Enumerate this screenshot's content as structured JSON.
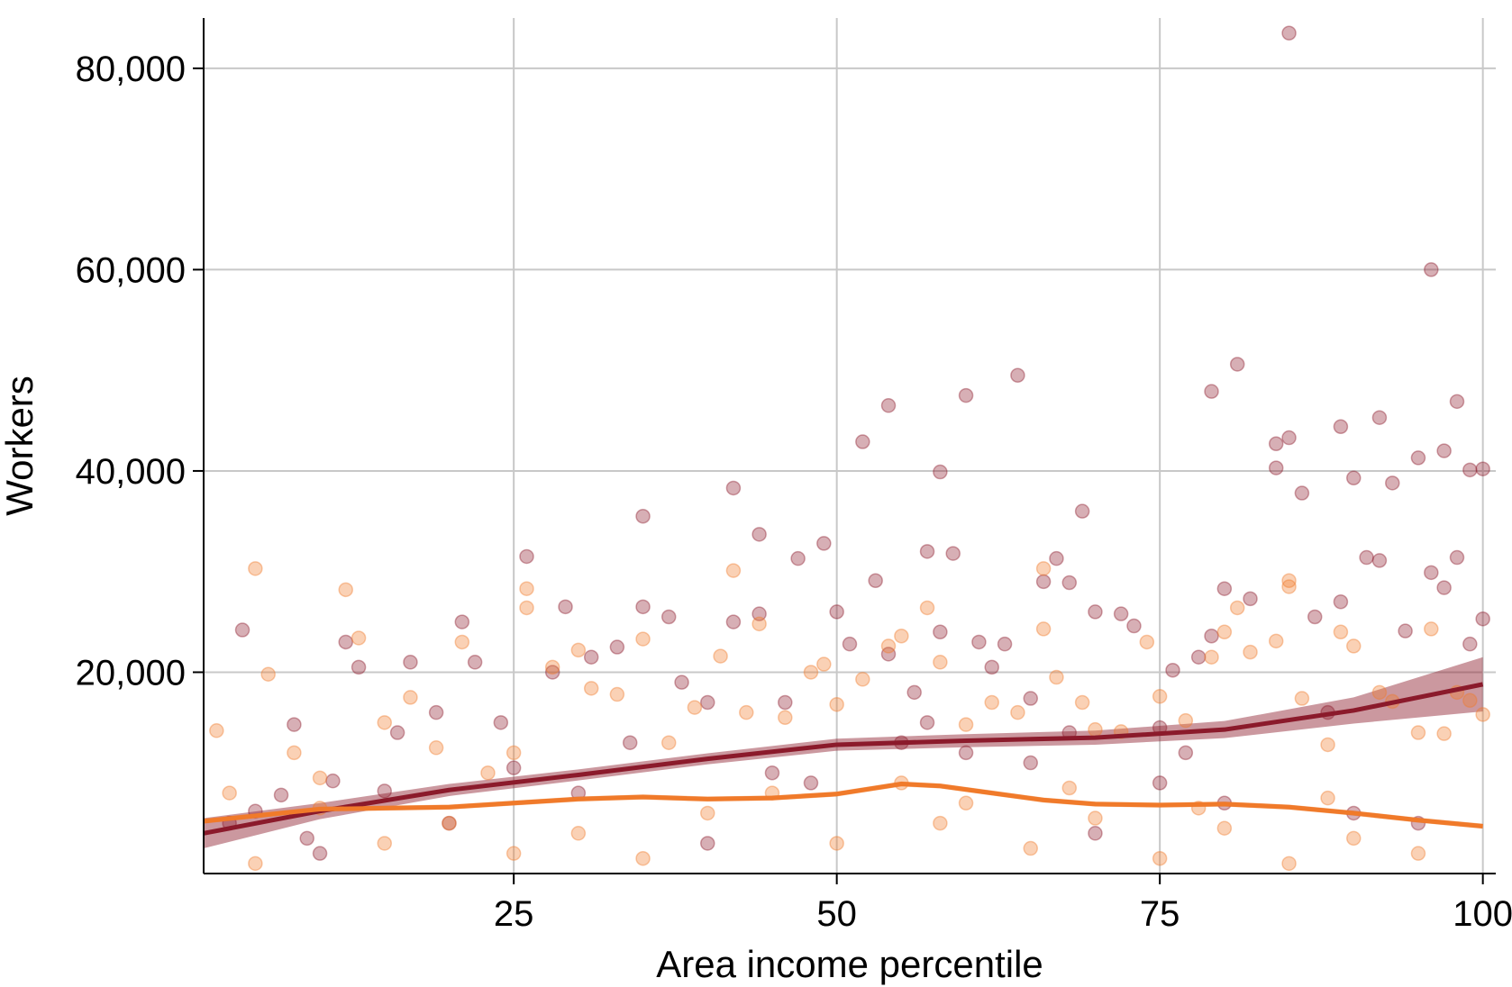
{
  "chart_data": {
    "type": "scatter",
    "title": "",
    "xlabel": "Area income percentile",
    "ylabel": "Workers",
    "xlim": [
      1,
      101
    ],
    "ylim": [
      0,
      85000
    ],
    "x_ticks": [
      25,
      50,
      75,
      100
    ],
    "x_tick_labels": [
      "25",
      "50",
      "75",
      "100"
    ],
    "y_ticks": [
      20000,
      40000,
      60000,
      80000
    ],
    "y_tick_labels": [
      "20,000",
      "40,000",
      "60,000",
      "80,000"
    ],
    "grid": true,
    "legend": "none",
    "series": [
      {
        "color": "#8b1a2b",
        "marker_alpha": 0.35,
        "points": [
          [
            3,
            5000
          ],
          [
            5,
            6200
          ],
          [
            7,
            7800
          ],
          [
            9,
            3500
          ],
          [
            11,
            9200
          ],
          [
            12,
            23000
          ],
          [
            13,
            20500
          ],
          [
            15,
            8200
          ],
          [
            17,
            21000
          ],
          [
            19,
            16000
          ],
          [
            21,
            25000
          ],
          [
            22,
            21000
          ],
          [
            24,
            15000
          ],
          [
            26,
            31500
          ],
          [
            28,
            20000
          ],
          [
            29,
            26500
          ],
          [
            31,
            21500
          ],
          [
            33,
            22500
          ],
          [
            35,
            35500
          ],
          [
            35,
            26500
          ],
          [
            37,
            25500
          ],
          [
            38,
            19000
          ],
          [
            40,
            17000
          ],
          [
            42,
            38300
          ],
          [
            42,
            25000
          ],
          [
            44,
            25800
          ],
          [
            44,
            33700
          ],
          [
            46,
            17000
          ],
          [
            47,
            31300
          ],
          [
            49,
            32800
          ],
          [
            50,
            26000
          ],
          [
            51,
            22800
          ],
          [
            52,
            42900
          ],
          [
            53,
            29100
          ],
          [
            54,
            46500
          ],
          [
            54,
            21800
          ],
          [
            56,
            18000
          ],
          [
            57,
            32000
          ],
          [
            58,
            39900
          ],
          [
            58,
            24000
          ],
          [
            59,
            31800
          ],
          [
            60,
            47500
          ],
          [
            61,
            23000
          ],
          [
            62,
            20500
          ],
          [
            63,
            22800
          ],
          [
            64,
            49500
          ],
          [
            65,
            17400
          ],
          [
            66,
            29000
          ],
          [
            67,
            31300
          ],
          [
            68,
            28900
          ],
          [
            69,
            36000
          ],
          [
            70,
            26000
          ],
          [
            72,
            25800
          ],
          [
            73,
            24600
          ],
          [
            75,
            14500
          ],
          [
            76,
            20200
          ],
          [
            78,
            21500
          ],
          [
            79,
            47900
          ],
          [
            79,
            23600
          ],
          [
            80,
            28300
          ],
          [
            81,
            50600
          ],
          [
            82,
            27300
          ],
          [
            84,
            42700
          ],
          [
            84,
            40300
          ],
          [
            85,
            43300
          ],
          [
            86,
            37800
          ],
          [
            87,
            25500
          ],
          [
            89,
            27000
          ],
          [
            89,
            44400
          ],
          [
            90,
            39300
          ],
          [
            91,
            31400
          ],
          [
            92,
            45300
          ],
          [
            92,
            31100
          ],
          [
            93,
            38800
          ],
          [
            94,
            24100
          ],
          [
            95,
            41300
          ],
          [
            96,
            60000
          ],
          [
            96,
            29900
          ],
          [
            97,
            42000
          ],
          [
            97,
            28400
          ],
          [
            98,
            46900
          ],
          [
            98,
            31400
          ],
          [
            99,
            40100
          ],
          [
            99,
            22800
          ],
          [
            100,
            40200
          ],
          [
            100,
            25300
          ],
          [
            85,
            83500
          ],
          [
            55,
            13000
          ],
          [
            65,
            11000
          ],
          [
            75,
            9000
          ],
          [
            30,
            8000
          ],
          [
            20,
            5000
          ],
          [
            45,
            10000
          ],
          [
            60,
            12000
          ],
          [
            80,
            7000
          ],
          [
            90,
            6000
          ],
          [
            10,
            2000
          ],
          [
            40,
            3000
          ],
          [
            70,
            4000
          ],
          [
            95,
            5000
          ],
          [
            4,
            24200
          ],
          [
            8,
            14800
          ],
          [
            16,
            14000
          ],
          [
            25,
            10500
          ],
          [
            34,
            13000
          ],
          [
            48,
            9000
          ],
          [
            57,
            15000
          ],
          [
            68,
            14000
          ],
          [
            77,
            12000
          ],
          [
            88,
            16000
          ]
        ],
        "smooth_line": [
          [
            1,
            4000
          ],
          [
            10,
            6200
          ],
          [
            20,
            8300
          ],
          [
            30,
            9800
          ],
          [
            40,
            11400
          ],
          [
            50,
            12800
          ],
          [
            60,
            13200
          ],
          [
            70,
            13500
          ],
          [
            80,
            14300
          ],
          [
            90,
            16200
          ],
          [
            100,
            18800
          ]
        ],
        "band_halfwidth": [
          [
            1,
            1500
          ],
          [
            10,
            800
          ],
          [
            20,
            600
          ],
          [
            30,
            550
          ],
          [
            40,
            550
          ],
          [
            50,
            600
          ],
          [
            60,
            650
          ],
          [
            70,
            700
          ],
          [
            80,
            850
          ],
          [
            90,
            1300
          ],
          [
            100,
            2700
          ]
        ]
      },
      {
        "color": "#f07a2a",
        "marker_alpha": 0.35,
        "points": [
          [
            2,
            14200
          ],
          [
            3,
            8000
          ],
          [
            5,
            30300
          ],
          [
            6,
            19800
          ],
          [
            8,
            12000
          ],
          [
            10,
            9500
          ],
          [
            12,
            28200
          ],
          [
            13,
            23400
          ],
          [
            15,
            15000
          ],
          [
            17,
            17500
          ],
          [
            19,
            12500
          ],
          [
            21,
            23000
          ],
          [
            23,
            10000
          ],
          [
            25,
            12000
          ],
          [
            26,
            28300
          ],
          [
            26,
            26400
          ],
          [
            28,
            20500
          ],
          [
            30,
            22200
          ],
          [
            31,
            18400
          ],
          [
            33,
            17800
          ],
          [
            35,
            23300
          ],
          [
            37,
            13000
          ],
          [
            39,
            16500
          ],
          [
            41,
            21600
          ],
          [
            42,
            30100
          ],
          [
            43,
            16000
          ],
          [
            44,
            24800
          ],
          [
            46,
            15500
          ],
          [
            48,
            20000
          ],
          [
            49,
            20800
          ],
          [
            50,
            16800
          ],
          [
            52,
            19300
          ],
          [
            54,
            22600
          ],
          [
            55,
            23600
          ],
          [
            57,
            26400
          ],
          [
            58,
            21000
          ],
          [
            60,
            14800
          ],
          [
            62,
            17000
          ],
          [
            64,
            16000
          ],
          [
            66,
            30300
          ],
          [
            66,
            24300
          ],
          [
            67,
            19500
          ],
          [
            69,
            17000
          ],
          [
            70,
            14300
          ],
          [
            72,
            14100
          ],
          [
            74,
            23000
          ],
          [
            75,
            17600
          ],
          [
            77,
            15200
          ],
          [
            79,
            21500
          ],
          [
            80,
            24000
          ],
          [
            81,
            26400
          ],
          [
            82,
            22000
          ],
          [
            84,
            23100
          ],
          [
            85,
            29100
          ],
          [
            85,
            28500
          ],
          [
            86,
            17400
          ],
          [
            88,
            12800
          ],
          [
            89,
            24000
          ],
          [
            90,
            22600
          ],
          [
            92,
            18000
          ],
          [
            93,
            17100
          ],
          [
            95,
            14000
          ],
          [
            96,
            24300
          ],
          [
            97,
            13900
          ],
          [
            98,
            18000
          ],
          [
            99,
            17200
          ],
          [
            100,
            15800
          ],
          [
            20,
            5000
          ],
          [
            30,
            4000
          ],
          [
            40,
            6000
          ],
          [
            50,
            3000
          ],
          [
            60,
            7000
          ],
          [
            70,
            5500
          ],
          [
            80,
            4500
          ],
          [
            90,
            3500
          ],
          [
            10,
            6500
          ],
          [
            45,
            8000
          ],
          [
            55,
            9000
          ],
          [
            65,
            2500
          ],
          [
            75,
            1500
          ],
          [
            85,
            1000
          ],
          [
            95,
            2000
          ],
          [
            15,
            3000
          ],
          [
            35,
            1500
          ],
          [
            25,
            2000
          ],
          [
            5,
            1000
          ],
          [
            58,
            5000
          ],
          [
            68,
            8500
          ],
          [
            78,
            6500
          ],
          [
            88,
            7500
          ]
        ],
        "smooth_line": [
          [
            1,
            5200
          ],
          [
            10,
            6400
          ],
          [
            20,
            6600
          ],
          [
            25,
            7000
          ],
          [
            30,
            7400
          ],
          [
            35,
            7600
          ],
          [
            40,
            7400
          ],
          [
            45,
            7500
          ],
          [
            50,
            7900
          ],
          [
            55,
            8900
          ],
          [
            58,
            8700
          ],
          [
            62,
            8000
          ],
          [
            66,
            7300
          ],
          [
            70,
            6900
          ],
          [
            75,
            6800
          ],
          [
            80,
            6900
          ],
          [
            85,
            6600
          ],
          [
            90,
            6000
          ],
          [
            95,
            5300
          ],
          [
            100,
            4700
          ]
        ],
        "band_halfwidth": [
          [
            1,
            250
          ],
          [
            50,
            250
          ],
          [
            100,
            250
          ]
        ]
      }
    ]
  }
}
